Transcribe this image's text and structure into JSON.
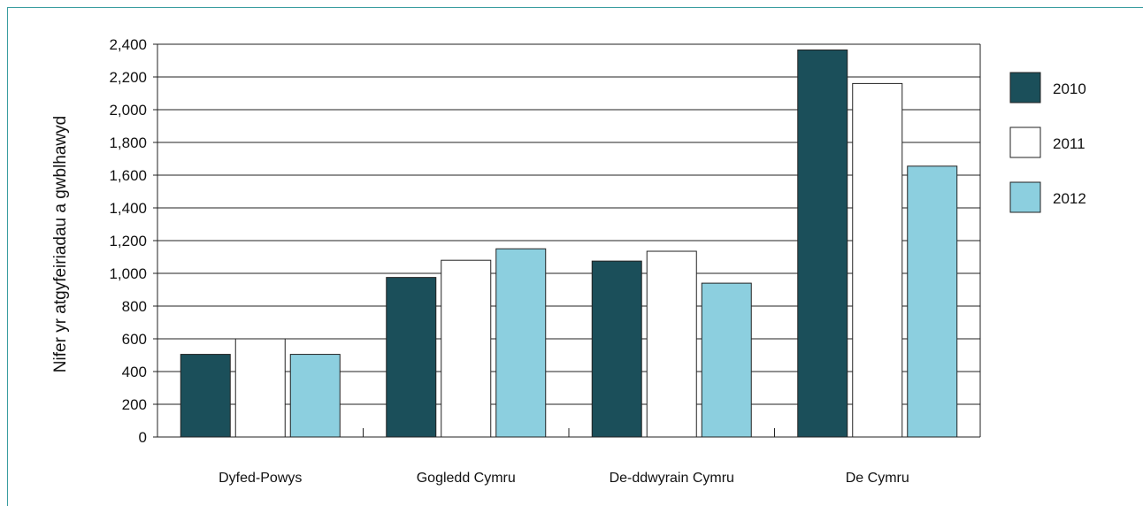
{
  "chart_data": {
    "type": "bar",
    "title": "",
    "xlabel": "",
    "ylabel": "Nifer yr atgyfeiriadau a gwblhawyd",
    "ylim": [
      0,
      2400
    ],
    "y_ticks": [
      "0",
      "200",
      "400",
      "600",
      "800",
      "1,000",
      "1,200",
      "1,400",
      "1,600",
      "1,800",
      "2,000",
      "2,200",
      "2,400"
    ],
    "categories": [
      "Dyfed-Powys",
      "Gogledd Cymru",
      "De-ddwyrain Cymru",
      "De Cymru"
    ],
    "series": [
      {
        "name": "2010",
        "color": "#1b4f5a",
        "values": [
          505,
          975,
          1075,
          2365
        ]
      },
      {
        "name": "2011",
        "color": "#ffffff",
        "values": [
          600,
          1080,
          1135,
          2160
        ]
      },
      {
        "name": "2012",
        "color": "#8ccfdf",
        "values": [
          505,
          1150,
          940,
          1655
        ]
      }
    ],
    "grid": true,
    "legend_position": "right"
  }
}
